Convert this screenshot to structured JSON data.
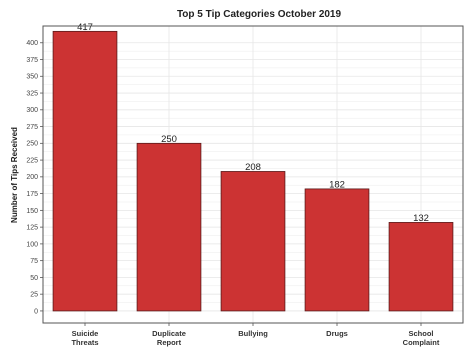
{
  "chart_data": {
    "type": "bar",
    "title": "Top 5 Tip Categories October 2019",
    "xlabel": "",
    "ylabel": "Number of Tips Received",
    "categories": [
      [
        "Suicide",
        "Threats"
      ],
      [
        "Duplicate",
        "Report"
      ],
      [
        "Bullying"
      ],
      [
        "Drugs"
      ],
      [
        "School",
        "Complaint"
      ]
    ],
    "values": [
      417,
      250,
      208,
      182,
      132
    ],
    "data_labels": [
      "417",
      "250",
      "208",
      "182",
      "132"
    ],
    "ylim": [
      -18,
      425
    ],
    "yticks": [
      0,
      25,
      50,
      75,
      100,
      125,
      150,
      175,
      200,
      225,
      250,
      275,
      300,
      325,
      350,
      375,
      400
    ],
    "grid": true,
    "legend": "none",
    "colors": {
      "bar_fill": "#cc3333",
      "bar_stroke": "#5a1a1a",
      "grid": "#e6e6e6",
      "frame": "#555555"
    }
  }
}
